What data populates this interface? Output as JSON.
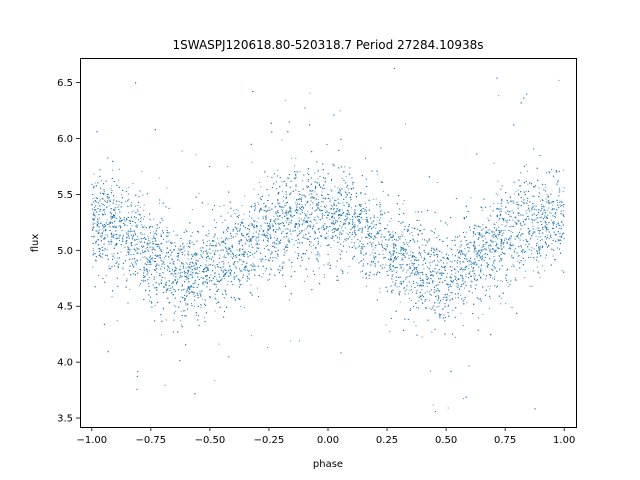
{
  "chart_data": {
    "type": "scatter",
    "title": "1SWASPJ120618.80-520318.7 Period 27284.10938s",
    "xlabel": "phase",
    "ylabel": "flux",
    "xlim": [
      -1.05,
      1.05
    ],
    "ylim": [
      3.42,
      6.72
    ],
    "grid": false,
    "legend": "none",
    "x_ticks": [
      -1.0,
      -0.75,
      -0.5,
      -0.25,
      0.0,
      0.25,
      0.5,
      0.75,
      1.0
    ],
    "x_tick_labels": [
      "−1.00",
      "−0.75",
      "−0.50",
      "−0.25",
      "0.00",
      "0.25",
      "0.50",
      "0.75",
      "1.00"
    ],
    "y_ticks": [
      3.5,
      4.0,
      4.5,
      5.0,
      5.5,
      6.0,
      6.5
    ],
    "y_tick_labels": [
      "3.5",
      "4.0",
      "4.5",
      "5.0",
      "5.5",
      "6.0",
      "6.5"
    ],
    "series": [
      {
        "color": "#1f77b4",
        "marker": "point",
        "phase": [
          -1.0,
          -0.9,
          -0.8,
          -0.7,
          -0.6,
          -0.5,
          -0.4,
          -0.3,
          -0.2,
          -0.1,
          0.0,
          0.1,
          0.2,
          0.3,
          0.4,
          0.5,
          0.6,
          0.7,
          0.8,
          0.9,
          1.0
        ],
        "flux_mean": [
          5.25,
          5.2,
          5.05,
          4.9,
          4.78,
          4.82,
          4.95,
          5.1,
          5.25,
          5.3,
          5.32,
          5.25,
          5.1,
          4.95,
          4.8,
          4.75,
          4.9,
          5.05,
          5.2,
          5.25,
          5.28
        ],
        "flux_scatter": 0.22,
        "approx_point_count": 9000
      }
    ]
  }
}
